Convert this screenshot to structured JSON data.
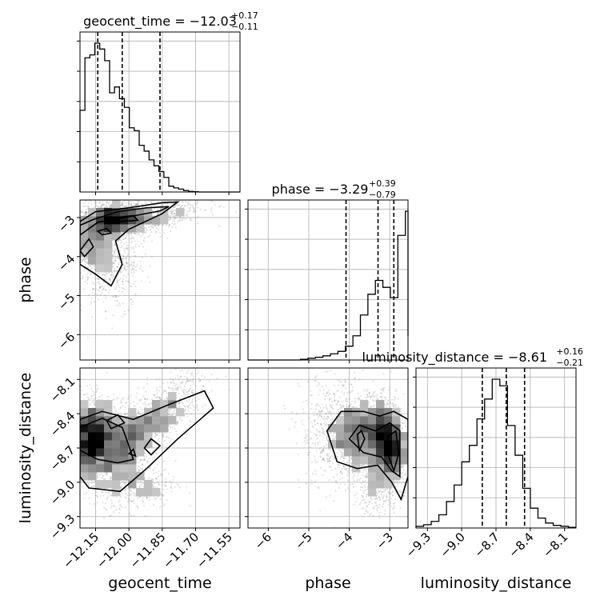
{
  "chart_data": [
    {
      "type": "histogram",
      "panel": "diag-geocent_time",
      "parameter": "geocent_time",
      "title": {
        "text": "geocent_time = −12.03",
        "sup": "+0.17",
        "sub": "−0.11"
      },
      "xlim": [
        -12.22,
        -11.5
      ],
      "quantiles": [
        -12.14,
        -12.03,
        -11.86
      ],
      "bins": {
        "start": -12.22,
        "width": 0.0222
      },
      "counts": [
        28,
        46,
        47,
        51,
        49,
        45,
        34,
        36,
        32,
        29,
        22,
        21,
        16,
        14,
        11,
        9,
        7,
        5,
        2,
        1.4,
        1,
        0.5,
        0.2,
        0.1,
        0,
        0,
        0,
        0,
        0,
        0,
        0,
        0,
        0
      ]
    },
    {
      "type": "histogram",
      "panel": "diag-phase",
      "parameter": "phase",
      "title": {
        "text": "phase = −3.29",
        "sup": "+0.39",
        "sub": "−0.79"
      },
      "xlim": [
        -6.5,
        -2.55
      ],
      "quantiles": [
        -4.08,
        -3.29,
        -2.9
      ],
      "bins": {
        "start": -6.5,
        "width": 0.185
      },
      "counts": [
        0,
        0,
        0,
        0,
        0,
        0,
        0,
        0.2,
        0.5,
        0.8,
        1.2,
        1.8,
        2.5,
        4,
        7,
        13,
        19,
        23,
        21,
        18,
        36,
        43,
        26
      ],
      "tail": 7
    },
    {
      "type": "histogram",
      "panel": "diag-luminosity_distance",
      "parameter": "luminosity_distance",
      "title": {
        "text": "luminosity_distance = −8.61",
        "sup": "+0.16",
        "sub": "−0.21"
      },
      "xlim": [
        -9.4,
        -8.0
      ],
      "quantiles": [
        -8.82,
        -8.61,
        -8.45
      ],
      "bins": {
        "start": -9.4,
        "width": 0.0667
      },
      "counts": [
        0.5,
        1,
        2,
        4,
        8,
        13,
        20,
        25,
        33,
        39,
        45,
        43,
        31,
        22,
        12,
        6,
        3,
        1.5,
        0.8,
        0.5,
        0.2
      ]
    },
    {
      "type": "heatmap",
      "panel": "scatter-phase-vs-geocent_time",
      "x_parameter": "geocent_time",
      "y_parameter": "phase",
      "xlim": [
        -12.22,
        -11.5
      ],
      "ylim": [
        -6.65,
        -2.55
      ]
    },
    {
      "type": "heatmap",
      "panel": "scatter-luminosity_distance-vs-geocent_time",
      "x_parameter": "geocent_time",
      "y_parameter": "luminosity_distance",
      "xlim": [
        -12.22,
        -11.5
      ],
      "ylim": [
        -9.4,
        -8.0
      ]
    },
    {
      "type": "heatmap",
      "panel": "scatter-luminosity_distance-vs-phase",
      "x_parameter": "phase",
      "y_parameter": "luminosity_distance",
      "xlim": [
        -6.5,
        -2.55
      ],
      "ylim": [
        -9.4,
        -8.0
      ]
    }
  ],
  "axes": {
    "geocent_time": {
      "label": "geocent_time",
      "ticks": [
        -12.15,
        -12.0,
        -11.85,
        -11.7,
        -11.55
      ],
      "tick_labels": [
        "−12.15",
        "−12.00",
        "−11.85",
        "−11.70",
        "−11.55"
      ]
    },
    "phase": {
      "label": "phase",
      "ticks": [
        -6,
        -5,
        -4,
        -3
      ],
      "tick_labels": [
        "−6",
        "−5",
        "−4",
        "−3"
      ]
    },
    "luminosity_distance": {
      "label": "luminosity_distance",
      "ticks": [
        -9.3,
        -9.0,
        -8.7,
        -8.4,
        -8.1
      ],
      "tick_labels": [
        "−9.3",
        "−9.0",
        "−8.7",
        "−8.4",
        "−8.1"
      ]
    }
  },
  "style": {
    "line": "#000000",
    "grid": "#b0b0b0",
    "point": "#7f7f7f"
  }
}
